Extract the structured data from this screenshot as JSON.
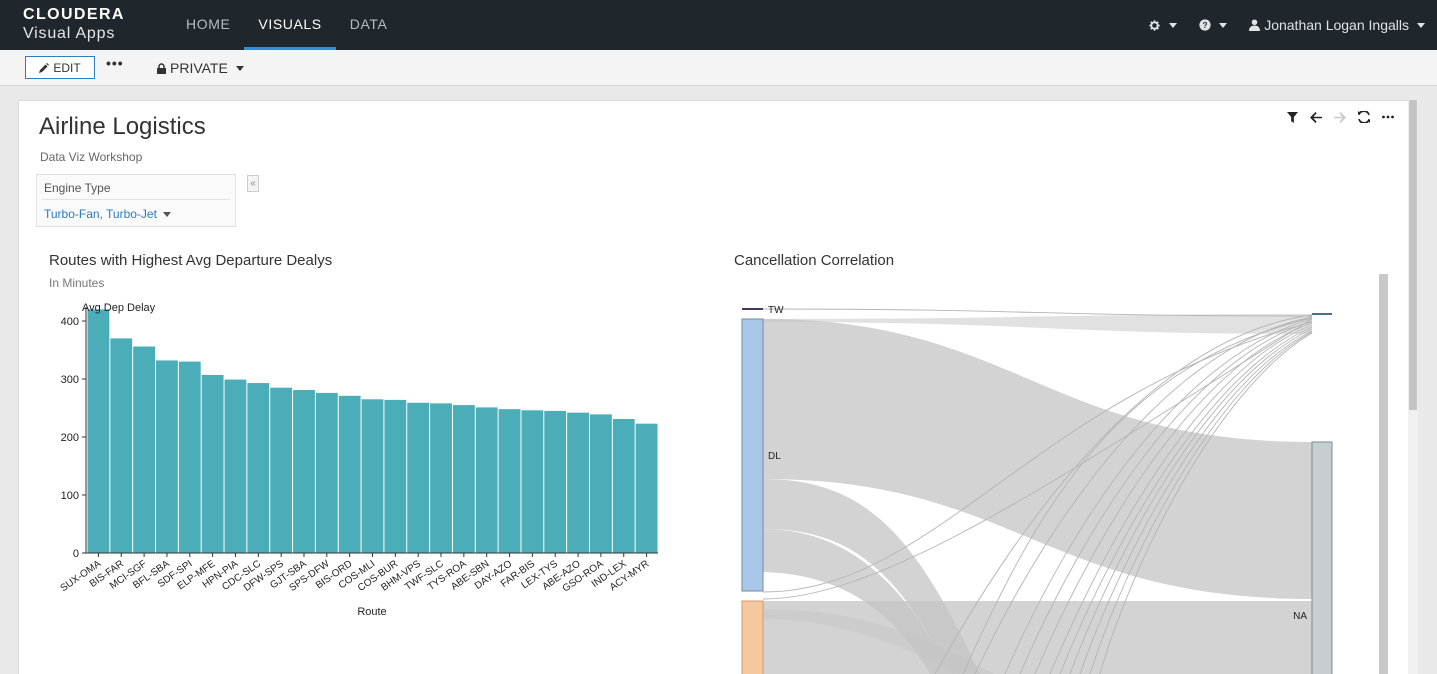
{
  "nav": {
    "brand_top": "CLOUDERA",
    "brand_bottom": "Visual Apps",
    "links": [
      "HOME",
      "VISUALS",
      "DATA"
    ],
    "active": "VISUALS",
    "user": "Jonathan Logan Ingalls",
    "icons": [
      "gear-icon",
      "help-icon",
      "user-icon"
    ]
  },
  "toolbar": {
    "edit_label": "EDIT",
    "more_label": "•••",
    "privacy_label": "PRIVATE"
  },
  "dashboard": {
    "title": "Airline Logistics",
    "subtitle": "Data Viz Workshop",
    "tools": [
      "filter-icon",
      "back-icon",
      "forward-icon",
      "refresh-icon",
      "more-icon"
    ]
  },
  "filter": {
    "label": "Engine Type",
    "value": "Turbo-Fan, Turbo-Jet"
  },
  "bar_chart": {
    "title": "Routes with Highest Avg Departure Dealys",
    "subtitle": "In Minutes"
  },
  "sankey_chart": {
    "title": "Cancellation Correlation"
  },
  "chart_data": [
    {
      "type": "bar",
      "title": "Routes with Highest Avg Departure Dealys",
      "subtitle": "In Minutes",
      "series_label": "Avg Dep Delay",
      "xlabel": "Route",
      "ylabel": "",
      "ylim": [
        0,
        420
      ],
      "yticks": [
        0,
        100,
        200,
        300,
        400
      ],
      "color": "#4aadb8",
      "categories": [
        "SUX-OMA",
        "BIS-FAR",
        "MCI-SGF",
        "BFL-SBA",
        "SDF-SPI",
        "ELP-MFE",
        "HPN-PIA",
        "CDC-SLC",
        "DFW-SPS",
        "GJT-SBA",
        "SPS-DFW",
        "BIS-ORD",
        "COS-MLI",
        "COS-BUR",
        "BHM-VPS",
        "TWF-SLC",
        "TYS-ROA",
        "ABE-SBN",
        "DAY-AZO",
        "FAR-BIS",
        "LEX-TYS",
        "ABE-AZO",
        "GSO-ROA",
        "IND-LEX",
        "ACY-MYR"
      ],
      "values": [
        420,
        370,
        356,
        332,
        330,
        307,
        299,
        293,
        285,
        281,
        276,
        271,
        265,
        264,
        259,
        258,
        255,
        251,
        248,
        246,
        245,
        242,
        239,
        231,
        223
      ]
    },
    {
      "type": "sankey",
      "title": "Cancellation Correlation",
      "left_nodes": [
        {
          "name": "TW",
          "color": "#3b3b5c"
        },
        {
          "name": "DL",
          "color": "#a9c8e8"
        },
        {
          "name": "",
          "color": "#f5c9a0"
        }
      ],
      "right_nodes": [
        {
          "name": "",
          "color": "#4a7276"
        },
        {
          "name": "NA",
          "color": "#c5cfd1"
        }
      ]
    }
  ]
}
